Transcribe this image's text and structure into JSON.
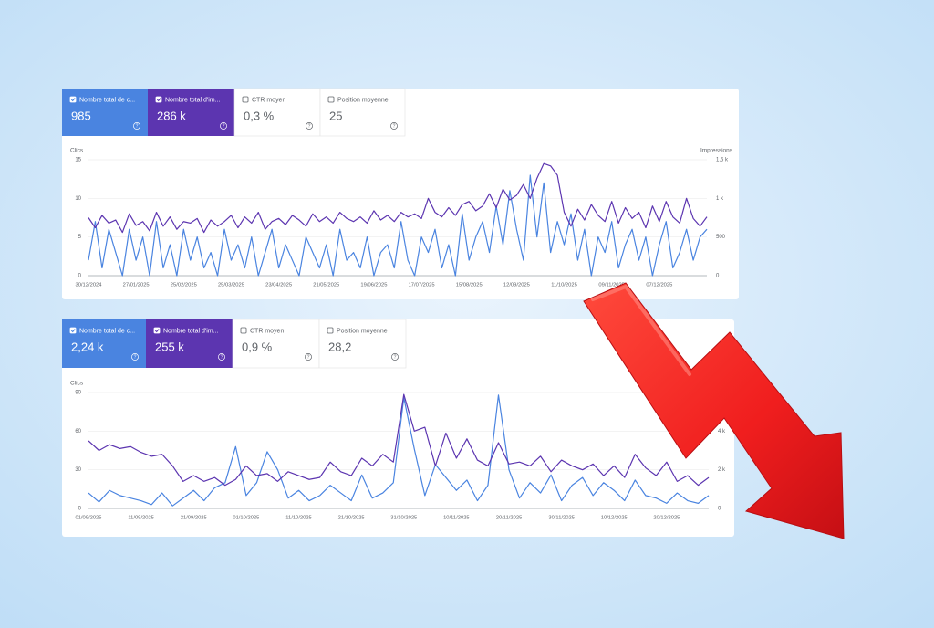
{
  "chart_data": [
    {
      "type": "line",
      "ylabel": "Clics",
      "y2label": "Impressions",
      "ylim": [
        0,
        15
      ],
      "yticks": [
        0,
        5,
        10,
        15
      ],
      "y2lim": [
        0,
        1500
      ],
      "y2ticks": [
        0,
        500,
        {
          "value": 1000,
          "label": "1 k"
        },
        {
          "value": 1500,
          "label": "1,5 k"
        }
      ],
      "grid": true,
      "categories": [
        "30/12/2024",
        null,
        null,
        null,
        null,
        null,
        null,
        "27/01/2025",
        null,
        null,
        null,
        null,
        null,
        null,
        "25/02/2025",
        null,
        null,
        null,
        null,
        null,
        null,
        "25/03/2025",
        null,
        null,
        null,
        null,
        null,
        null,
        "23/04/2025",
        null,
        null,
        null,
        null,
        null,
        null,
        "21/05/2025",
        null,
        null,
        null,
        null,
        null,
        null,
        "19/06/2025",
        null,
        null,
        null,
        null,
        null,
        null,
        "17/07/2025",
        null,
        null,
        null,
        null,
        null,
        null,
        "15/08/2025",
        null,
        null,
        null,
        null,
        null,
        null,
        "12/09/2025",
        null,
        null,
        null,
        null,
        null,
        null,
        "11/10/2025",
        null,
        null,
        null,
        null,
        null,
        null,
        "09/11/2025",
        null,
        null,
        null,
        null,
        null,
        null,
        "07/12/2025",
        null,
        null,
        null,
        null,
        null,
        null,
        null
      ],
      "series": [
        {
          "name": "Nombre total de c...",
          "total": "985",
          "color": "#4a84e0",
          "values": [
            2,
            7,
            1,
            6,
            3,
            0,
            6,
            2,
            5,
            0,
            7,
            1,
            4,
            0,
            6,
            2,
            5,
            1,
            3,
            0,
            6,
            2,
            4,
            1,
            5,
            0,
            3,
            6,
            1,
            4,
            2,
            0,
            5,
            3,
            1,
            4,
            0,
            6,
            2,
            3,
            1,
            5,
            0,
            3,
            4,
            1,
            7,
            2,
            0,
            5,
            3,
            6,
            1,
            4,
            0,
            8,
            2,
            5,
            7,
            3,
            9,
            4,
            11,
            6,
            2,
            13,
            5,
            12,
            3,
            7,
            4,
            8,
            2,
            6,
            0,
            5,
            3,
            7,
            1,
            4,
            6,
            2,
            5,
            0,
            4,
            7,
            1,
            3,
            6,
            2,
            5,
            6
          ]
        },
        {
          "name": "Nombre total d'im...",
          "total": "286 k",
          "color": "#5c35b0",
          "axis": "y2",
          "values": [
            750,
            620,
            780,
            680,
            720,
            560,
            800,
            650,
            700,
            580,
            820,
            640,
            760,
            600,
            700,
            680,
            740,
            560,
            720,
            640,
            700,
            780,
            620,
            760,
            680,
            820,
            600,
            700,
            740,
            660,
            780,
            720,
            640,
            800,
            700,
            760,
            680,
            820,
            740,
            700,
            760,
            680,
            840,
            720,
            780,
            700,
            820,
            760,
            800,
            740,
            1000,
            820,
            760,
            880,
            780,
            920,
            960,
            840,
            900,
            1060,
            880,
            1120,
            980,
            1040,
            1180,
            1000,
            1260,
            1450,
            1420,
            1300,
            820,
            640,
            860,
            720,
            920,
            780,
            700,
            960,
            680,
            880,
            740,
            820,
            620,
            900,
            700,
            960,
            760,
            680,
            1000,
            740,
            640,
            760
          ]
        }
      ],
      "metrics": [
        {
          "label": "CTR moyen",
          "value": "0,3 %"
        },
        {
          "label": "Position moyenne",
          "value": "25"
        }
      ]
    },
    {
      "type": "line",
      "ylabel": "Clics",
      "ylim": [
        0,
        90
      ],
      "yticks": [
        0,
        30,
        60,
        90
      ],
      "y2lim": [
        0,
        6000
      ],
      "y2ticks": [
        0,
        {
          "value": 2000,
          "label": "2 k"
        },
        {
          "value": 4000,
          "label": "4 k"
        }
      ],
      "grid": true,
      "categories": [
        "01/09/2025",
        null,
        null,
        null,
        null,
        "11/09/2025",
        null,
        null,
        null,
        null,
        "21/09/2025",
        null,
        null,
        null,
        null,
        "01/10/2025",
        null,
        null,
        null,
        null,
        "11/10/2025",
        null,
        null,
        null,
        null,
        "21/10/2025",
        null,
        null,
        null,
        null,
        "31/10/2025",
        null,
        null,
        null,
        null,
        "10/11/2025",
        null,
        null,
        null,
        null,
        "20/11/2025",
        null,
        null,
        null,
        null,
        "30/11/2025",
        null,
        null,
        null,
        null,
        "10/12/2025",
        null,
        null,
        null,
        null,
        "20/12/2025",
        null,
        null,
        null,
        null
      ],
      "series": [
        {
          "name": "Nombre total de c...",
          "total": "2,24 k",
          "color": "#4a84e0",
          "values": [
            12,
            5,
            14,
            10,
            8,
            6,
            3,
            12,
            2,
            8,
            14,
            6,
            16,
            20,
            48,
            10,
            20,
            44,
            30,
            8,
            14,
            6,
            10,
            18,
            12,
            6,
            26,
            8,
            12,
            20,
            86,
            46,
            10,
            34,
            24,
            14,
            22,
            6,
            18,
            88,
            30,
            8,
            20,
            12,
            26,
            6,
            18,
            24,
            10,
            20,
            14,
            6,
            22,
            10,
            8,
            4,
            12,
            6,
            4,
            10
          ]
        },
        {
          "name": "Nombre total d'im...",
          "total": "255 k",
          "color": "#5c35b0",
          "axis": "y2",
          "values": [
            3500,
            3000,
            3300,
            3100,
            3200,
            2900,
            2700,
            2800,
            2200,
            1400,
            1700,
            1400,
            1600,
            1200,
            1500,
            2200,
            1700,
            1800,
            1400,
            1900,
            1700,
            1500,
            1600,
            2400,
            1900,
            1700,
            2600,
            2200,
            2800,
            2400,
            5900,
            4000,
            4200,
            2200,
            3900,
            2600,
            3600,
            2500,
            2200,
            3400,
            2300,
            2400,
            2200,
            2700,
            1900,
            2500,
            2200,
            2000,
            2300,
            1700,
            2200,
            1600,
            2800,
            2100,
            1700,
            2400,
            1400,
            1700,
            1200,
            1600
          ]
        }
      ],
      "metrics": [
        {
          "label": "CTR moyen",
          "value": "0,9 %"
        },
        {
          "label": "Position moyenne",
          "value": "28,2"
        }
      ]
    }
  ]
}
